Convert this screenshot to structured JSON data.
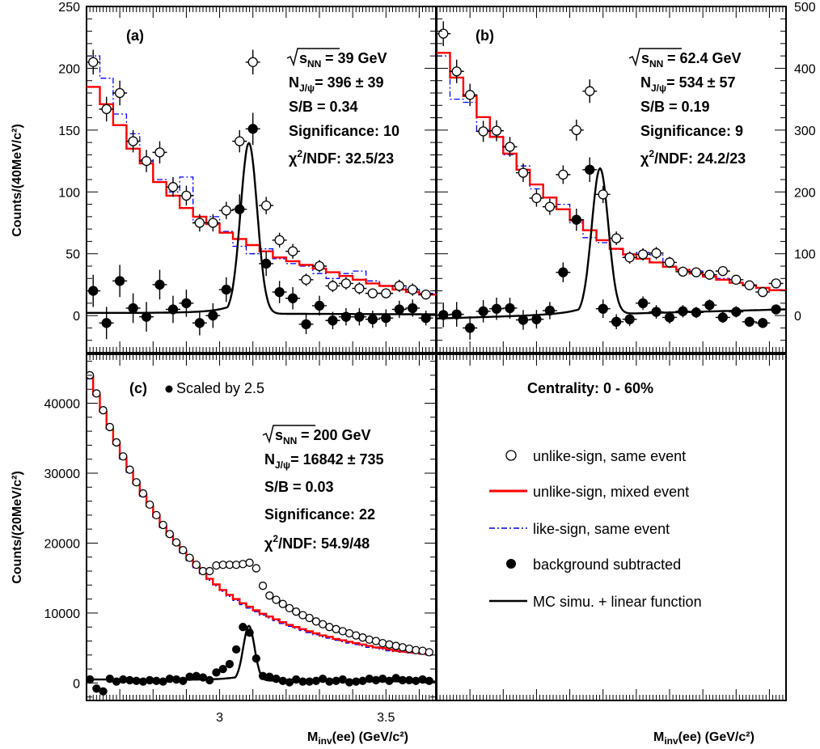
{
  "colors": {
    "unlike_mixed": "#ff0000",
    "like_same": "#0000ff",
    "fit": "#000000",
    "open_marker": "#000000",
    "filled_marker": "#000000"
  },
  "axes": {
    "ylabel_top": "Counts/(40MeV/c²)",
    "ylabel_bottom": "Counts/(20MeV/c²)",
    "xlabel_left": "M",
    "xlabel_left_sub": "inv",
    "xlabel_left_rest": "(ee) (GeV/c²)",
    "xlabel_right": "M",
    "xlabel_right_sub": "inv",
    "xlabel_right_rest": "(ee) (GeV/c²)"
  },
  "panel_a": {
    "label": "(a)",
    "energy": "= 39 GeV",
    "njpsi": "= 396 ± 39",
    "sb": "S/B = 0.34",
    "significance": "Significance: 10",
    "chi2": "/NDF: 32.5/23"
  },
  "panel_b": {
    "label": "(b)",
    "energy": "= 62.4 GeV",
    "njpsi": "= 534 ± 57",
    "sb": "S/B = 0.19",
    "significance": "Significance: 9",
    "chi2": "/NDF: 24.2/23"
  },
  "panel_c": {
    "label": "(c)",
    "scaled": "Scaled by 2.5",
    "energy": "= 200 GeV",
    "njpsi": "= 16842 ± 735",
    "sb": "S/B = 0.03",
    "significance": "Significance: 22",
    "chi2": "/NDF: 54.9/48"
  },
  "legend": {
    "centrality": "Centrality: 0 - 60%",
    "items": [
      "unlike-sign, same event",
      "unlike-sign, mixed event",
      "like-sign, same event",
      "background subtracted",
      "MC simu. + linear function"
    ]
  },
  "chart_data": [
    {
      "type": "scatter",
      "panel": "a",
      "xlim": [
        2.6,
        3.65
      ],
      "ylim": [
        -30,
        250
      ],
      "y_ticks": [
        0,
        50,
        100,
        150,
        200,
        250
      ],
      "x_ticks": [],
      "ylabel": "Counts/(40MeV/c²)",
      "series": [
        {
          "name": "unlike-sign, same event",
          "x": [
            2.62,
            2.66,
            2.7,
            2.74,
            2.78,
            2.82,
            2.86,
            2.9,
            2.94,
            2.98,
            3.02,
            3.06,
            3.1,
            3.14,
            3.18,
            3.22,
            3.26,
            3.3,
            3.34,
            3.38,
            3.42,
            3.46,
            3.5,
            3.54,
            3.58,
            3.62
          ],
          "y": [
            205,
            167,
            180,
            141,
            125,
            132,
            104,
            97,
            75,
            75,
            85,
            141,
            205,
            89,
            61,
            52,
            29,
            40,
            24,
            26,
            22,
            18,
            18,
            24,
            21,
            17
          ],
          "err": [
            10,
            10,
            10,
            9,
            9,
            9,
            8,
            8,
            7,
            7,
            7,
            9,
            10,
            7,
            6,
            6,
            5,
            5,
            5,
            5,
            5,
            4,
            4,
            5,
            5,
            4
          ]
        },
        {
          "name": "unlike-sign, mixed event",
          "edges": [
            2.6,
            2.64,
            2.68,
            2.72,
            2.76,
            2.8,
            2.84,
            2.88,
            2.92,
            2.96,
            3.0,
            3.04,
            3.08,
            3.12,
            3.16,
            3.2,
            3.24,
            3.28,
            3.32,
            3.36,
            3.4,
            3.44,
            3.48,
            3.52,
            3.56,
            3.6,
            3.65
          ],
          "values": [
            185,
            171,
            154,
            135,
            123,
            108,
            97,
            87,
            80,
            74,
            67,
            62,
            57,
            52,
            47,
            44,
            41,
            38,
            35,
            32,
            29,
            26,
            24,
            21,
            19,
            17
          ]
        },
        {
          "name": "like-sign, same event",
          "edges": [
            2.6,
            2.64,
            2.68,
            2.72,
            2.76,
            2.8,
            2.84,
            2.88,
            2.92,
            2.96,
            3.0,
            3.04,
            3.08,
            3.12,
            3.16,
            3.2,
            3.24,
            3.28,
            3.32,
            3.36,
            3.4,
            3.44,
            3.48,
            3.52,
            3.56,
            3.6,
            3.65
          ],
          "values": [
            210,
            192,
            163,
            147,
            126,
            110,
            100,
            112,
            76,
            80,
            68,
            56,
            50,
            54,
            46,
            42,
            40,
            34,
            30,
            34,
            36,
            28,
            24,
            24,
            22,
            18
          ]
        },
        {
          "name": "background subtracted",
          "x": [
            2.62,
            2.66,
            2.7,
            2.74,
            2.78,
            2.82,
            2.86,
            2.9,
            2.94,
            2.98,
            3.02,
            3.06,
            3.1,
            3.14,
            3.18,
            3.22,
            3.26,
            3.3,
            3.34,
            3.38,
            3.42,
            3.46,
            3.5,
            3.54,
            3.58,
            3.62
          ],
          "y": [
            20,
            -6,
            28,
            6,
            -1,
            25,
            5,
            10,
            -6,
            0,
            21,
            86,
            151,
            42,
            19,
            14,
            -7,
            8,
            -4,
            -1,
            -1,
            -3,
            -2,
            5,
            6,
            -2
          ],
          "err": [
            13,
            13,
            13,
            12,
            12,
            12,
            11,
            11,
            10,
            10,
            10,
            12,
            13,
            10,
            9,
            9,
            8,
            8,
            7,
            7,
            7,
            7,
            7,
            7,
            7,
            6
          ]
        },
        {
          "name": "MC simu. + linear function",
          "mu": 3.088,
          "sigma": 0.025,
          "peak": 138,
          "base_start": 2,
          "base_end": 1
        }
      ]
    },
    {
      "type": "scatter",
      "panel": "b",
      "xlim": [
        2.6,
        3.65
      ],
      "ylim": [
        -60,
        500
      ],
      "y_ticks": [
        0,
        100,
        200,
        300,
        400,
        500
      ],
      "x_ticks": [],
      "series": [
        {
          "name": "unlike-sign, same event",
          "x": [
            2.62,
            2.66,
            2.7,
            2.74,
            2.78,
            2.82,
            2.86,
            2.9,
            2.94,
            2.98,
            3.02,
            3.06,
            3.1,
            3.14,
            3.18,
            3.22,
            3.26,
            3.3,
            3.34,
            3.38,
            3.42,
            3.46,
            3.5,
            3.54,
            3.58,
            3.62
          ],
          "y": [
            456,
            395,
            357,
            298,
            299,
            273,
            231,
            190,
            176,
            228,
            300,
            363,
            196,
            125,
            94,
            99,
            101,
            86,
            71,
            70,
            66,
            72,
            58,
            49,
            38,
            52
          ],
          "err": [
            20,
            19,
            18,
            17,
            17,
            16,
            15,
            14,
            13,
            15,
            17,
            19,
            14,
            11,
            10,
            10,
            10,
            9,
            8,
            8,
            8,
            8,
            7,
            7,
            6,
            7
          ]
        },
        {
          "name": "unlike-sign, mixed event",
          "edges": [
            2.6,
            2.64,
            2.68,
            2.72,
            2.76,
            2.8,
            2.84,
            2.88,
            2.92,
            2.96,
            3.0,
            3.04,
            3.08,
            3.12,
            3.16,
            3.2,
            3.24,
            3.28,
            3.32,
            3.36,
            3.4,
            3.44,
            3.48,
            3.52,
            3.56,
            3.6,
            3.65
          ],
          "values": [
            425,
            385,
            355,
            321,
            289,
            262,
            236,
            212,
            191,
            172,
            154,
            138,
            122,
            108,
            99,
            92,
            86,
            79,
            74,
            68,
            63,
            58,
            53,
            49,
            45,
            41
          ]
        },
        {
          "name": "like-sign, same event",
          "edges": [
            2.6,
            2.64,
            2.68,
            2.72,
            2.76,
            2.8,
            2.84,
            2.88,
            2.92,
            2.96,
            3.0,
            3.04,
            3.08,
            3.12,
            3.16,
            3.2,
            3.24,
            3.28,
            3.32,
            3.36,
            3.4,
            3.44,
            3.48,
            3.52,
            3.56,
            3.6,
            3.65
          ],
          "values": [
            420,
            350,
            345,
            300,
            290,
            260,
            242,
            205,
            190,
            180,
            150,
            126,
            118,
            107,
            95,
            102,
            98,
            80,
            74,
            72,
            66,
            60,
            53,
            50,
            44,
            42
          ]
        },
        {
          "name": "background subtracted",
          "x": [
            2.62,
            2.66,
            2.7,
            2.74,
            2.78,
            2.82,
            2.86,
            2.9,
            2.94,
            2.98,
            3.02,
            3.06,
            3.1,
            3.14,
            3.18,
            3.22,
            3.26,
            3.3,
            3.34,
            3.38,
            3.42,
            3.46,
            3.5,
            3.54,
            3.58,
            3.62
          ],
          "y": [
            1,
            2,
            -20,
            7,
            11,
            12,
            -7,
            -6,
            8,
            70,
            155,
            236,
            11,
            -10,
            -6,
            20,
            6,
            -3,
            7,
            5,
            17,
            -3,
            6,
            -10,
            -12,
            10
          ],
          "err": [
            20,
            20,
            19,
            18,
            18,
            17,
            16,
            15,
            14,
            16,
            18,
            20,
            15,
            12,
            11,
            11,
            11,
            10,
            10,
            9,
            9,
            9,
            9,
            8,
            8,
            8
          ]
        },
        {
          "name": "MC simu. + linear function",
          "mu": 3.091,
          "sigma": 0.025,
          "peak": 236,
          "base_start": -5,
          "base_end": 10
        }
      ]
    },
    {
      "type": "scatter",
      "panel": "c",
      "xlim": [
        2.6,
        3.65
      ],
      "ylim": [
        -2500,
        47000
      ],
      "y_ticks": [
        0,
        10000,
        20000,
        30000,
        40000
      ],
      "x_ticks": [
        3,
        3.5
      ],
      "ylabel": "Counts/(20MeV/c²)",
      "xlabel": "Minv(ee) (GeV/c²)",
      "series": [
        {
          "name": "unlike-sign, same event",
          "x": [
            2.61,
            2.63,
            2.65,
            2.67,
            2.69,
            2.71,
            2.73,
            2.75,
            2.77,
            2.79,
            2.81,
            2.83,
            2.85,
            2.87,
            2.89,
            2.91,
            2.93,
            2.95,
            2.97,
            2.99,
            3.01,
            3.03,
            3.05,
            3.07,
            3.09,
            3.11,
            3.13,
            3.15,
            3.17,
            3.19,
            3.21,
            3.23,
            3.25,
            3.27,
            3.29,
            3.31,
            3.33,
            3.35,
            3.37,
            3.39,
            3.41,
            3.43,
            3.45,
            3.47,
            3.49,
            3.51,
            3.53,
            3.55,
            3.57,
            3.59,
            3.61,
            3.63
          ],
          "y": [
            44000,
            41400,
            39000,
            36600,
            34400,
            32400,
            30500,
            28700,
            27100,
            25500,
            24000,
            22600,
            21300,
            20100,
            19000,
            17900,
            16900,
            16000,
            16000,
            16800,
            16900,
            16900,
            16900,
            17000,
            17200,
            16400,
            13900,
            12500,
            11900,
            11300,
            10700,
            10200,
            9700,
            9300,
            8800,
            8400,
            8000,
            7700,
            7400,
            7100,
            6800,
            6500,
            6200,
            6000,
            5700,
            5500,
            5300,
            5100,
            4900,
            4700,
            4600,
            4400
          ]
        },
        {
          "name": "unlike-sign, mixed event",
          "edges_start": 2.6,
          "bin_width": 0.02,
          "values": [
            43800,
            41200,
            38800,
            36400,
            34200,
            32200,
            30300,
            28500,
            26900,
            25300,
            23800,
            22400,
            21100,
            19900,
            18800,
            17700,
            16700,
            15800,
            14900,
            14100,
            13300,
            12600,
            12000,
            11400,
            10900,
            10400,
            9900,
            9500,
            9100,
            8700,
            8300,
            8000,
            7700,
            7400,
            7100,
            6800,
            6600,
            6300,
            6100,
            5900,
            5700,
            5500,
            5300,
            5100,
            5000,
            4800,
            4600,
            4500,
            4400,
            4300,
            4200,
            4100
          ]
        },
        {
          "name": "like-sign, same event",
          "edges_start": 2.6,
          "bin_width": 0.02,
          "values": [
            43500,
            41000,
            38600,
            36300,
            34100,
            32000,
            30100,
            28300,
            26700,
            25100,
            23600,
            22200,
            20900,
            19700,
            18600,
            17500,
            16500,
            15600,
            14700,
            13900,
            13100,
            12400,
            11800,
            11200,
            10700,
            10200,
            9700,
            9300,
            8900,
            8500,
            8100,
            7800,
            7500,
            7200,
            6900,
            6600,
            6400,
            6100,
            5900,
            5700,
            5500,
            5300,
            5100,
            5000,
            4800,
            4600,
            4500,
            4400,
            4300,
            4200,
            4100,
            4000
          ]
        },
        {
          "name": "background subtracted",
          "x": [
            2.61,
            2.63,
            2.65,
            2.67,
            2.69,
            2.71,
            2.73,
            2.75,
            2.77,
            2.79,
            2.81,
            2.83,
            2.85,
            2.87,
            2.89,
            2.91,
            2.93,
            2.95,
            2.97,
            2.99,
            3.01,
            3.03,
            3.05,
            3.07,
            3.09,
            3.11,
            3.13,
            3.15,
            3.17,
            3.19,
            3.21,
            3.23,
            3.25,
            3.27,
            3.29,
            3.31,
            3.33,
            3.35,
            3.37,
            3.39,
            3.41,
            3.43,
            3.45,
            3.47,
            3.49,
            3.51,
            3.53,
            3.55,
            3.57,
            3.59,
            3.61,
            3.63
          ],
          "y": [
            500,
            -800,
            -1200,
            600,
            200,
            500,
            400,
            300,
            200,
            400,
            300,
            200,
            600,
            500,
            300,
            900,
            1000,
            800,
            400,
            1500,
            2000,
            2700,
            4800,
            8000,
            7200,
            3500,
            1000,
            900,
            600,
            300,
            100,
            500,
            200,
            200,
            300,
            600,
            200,
            300,
            500,
            100,
            200,
            300,
            600,
            400,
            600,
            300,
            700,
            400,
            400,
            300,
            500,
            300
          ]
        },
        {
          "name": "MC simu. + linear function",
          "mu": 3.088,
          "sigma": 0.017,
          "peak": 7800,
          "base_start": 500,
          "base_end": 200
        }
      ]
    }
  ]
}
